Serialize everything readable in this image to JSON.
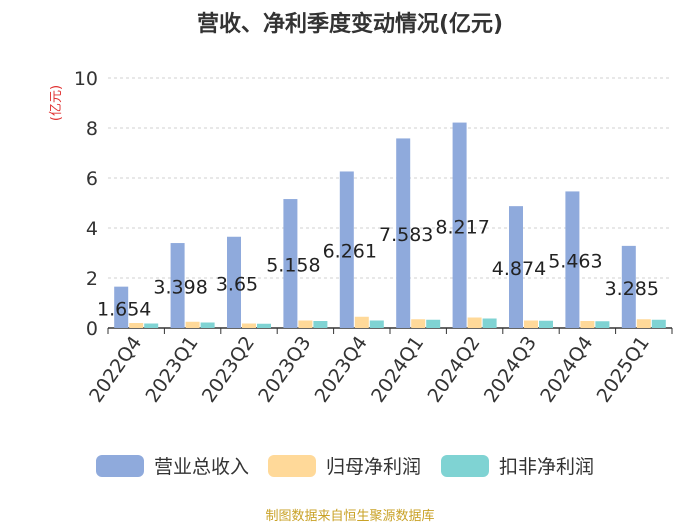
{
  "chart_data": {
    "type": "bar",
    "title": "营收、净利季度变动情况(亿元)",
    "ylabel": "(亿元)",
    "xlabel": "",
    "ylim": [
      0,
      10
    ],
    "yticks": [
      0,
      2,
      4,
      6,
      8,
      10
    ],
    "grid": "horizontal-dashed",
    "legend_position": "bottom",
    "categories": [
      "2022Q4",
      "2023Q1",
      "2023Q2",
      "2023Q3",
      "2023Q4",
      "2024Q1",
      "2024Q2",
      "2024Q3",
      "2024Q4",
      "2025Q1"
    ],
    "series": [
      {
        "name": "营业总收入",
        "color": "#8faadc",
        "values": [
          1.654,
          3.398,
          3.65,
          5.158,
          6.261,
          7.583,
          8.217,
          4.874,
          5.463,
          3.285
        ],
        "labels": [
          "1.654",
          "3.398",
          "3.65",
          "5.158",
          "6.261",
          "7.583",
          "8.217",
          "4.874",
          "5.463",
          "3.285"
        ]
      },
      {
        "name": "归母净利润",
        "color": "#ffd999",
        "values": [
          0.2,
          0.25,
          0.18,
          0.3,
          0.45,
          0.35,
          0.42,
          0.3,
          0.28,
          0.35
        ]
      },
      {
        "name": "扣非净利润",
        "color": "#7fd3d3",
        "values": [
          0.18,
          0.22,
          0.17,
          0.28,
          0.3,
          0.33,
          0.38,
          0.29,
          0.27,
          0.33
        ]
      }
    ]
  },
  "source_note": "制图数据来自恒生聚源数据库"
}
